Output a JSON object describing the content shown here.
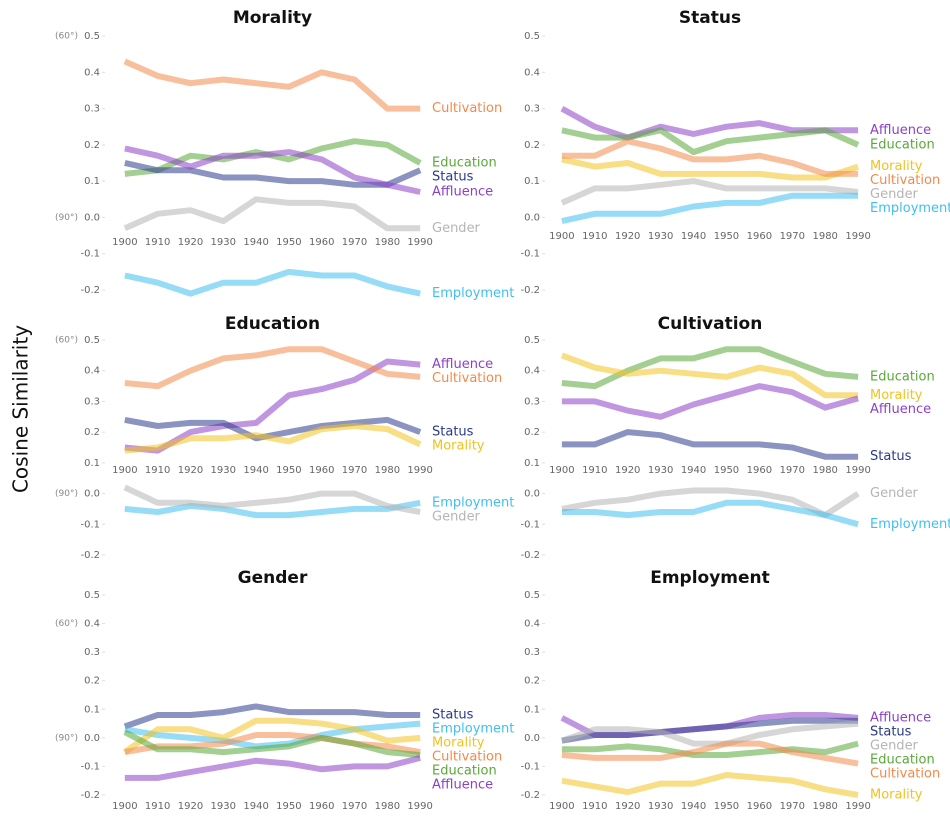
{
  "y_axis_label": "Cosine Similarity",
  "chart_data": [
    {
      "type": "line",
      "title": "Morality",
      "x": [
        1900,
        1910,
        1920,
        1930,
        1940,
        1950,
        1960,
        1970,
        1980,
        1990
      ],
      "xlim": [
        1897,
        1993
      ],
      "xticks": [
        1900,
        1910,
        1920,
        1930,
        1940,
        1950,
        1960,
        1970,
        1980,
        1990
      ],
      "ylim": [
        -0.2,
        0.5
      ],
      "yticks": [
        0.5,
        0.4,
        0.3,
        0.2,
        0.1,
        {
          "value": 0,
          "label": "0.0"
        },
        -0.1,
        -0.2
      ],
      "annotations": [
        {
          "text": "(60°)",
          "y": 0.5
        },
        {
          "text": "(90°)",
          "y": 0
        }
      ],
      "series": [
        {
          "name": "Cultivation",
          "color": "#f28a4a",
          "values": [
            0.43,
            0.39,
            0.37,
            0.38,
            0.37,
            0.36,
            0.4,
            0.38,
            0.3,
            0.3
          ]
        },
        {
          "name": "Education",
          "color": "#5aa83a",
          "values": [
            0.12,
            0.13,
            0.17,
            0.16,
            0.18,
            0.16,
            0.19,
            0.21,
            0.2,
            0.15
          ]
        },
        {
          "name": "Status",
          "color": "#2b3a8c",
          "values": [
            0.15,
            0.13,
            0.13,
            0.11,
            0.11,
            0.1,
            0.1,
            0.09,
            0.09,
            0.13
          ]
        },
        {
          "name": "Affluence",
          "color": "#8c3fc8",
          "values": [
            0.19,
            0.17,
            0.14,
            0.17,
            0.17,
            0.18,
            0.16,
            0.11,
            0.09,
            0.07
          ]
        },
        {
          "name": "Gender",
          "color": "#b5b5b5",
          "values": [
            -0.03,
            0.01,
            0.02,
            -0.01,
            0.05,
            0.04,
            0.04,
            0.03,
            -0.03,
            -0.03
          ]
        },
        {
          "name": "Employment",
          "color": "#3fbff0",
          "values": [
            -0.16,
            -0.18,
            -0.21,
            -0.18,
            -0.18,
            -0.15,
            -0.16,
            -0.16,
            -0.19,
            -0.21
          ]
        }
      ]
    },
    {
      "type": "line",
      "title": "Status",
      "x": [
        1900,
        1910,
        1920,
        1930,
        1940,
        1950,
        1960,
        1970,
        1980,
        1990
      ],
      "xlim": [
        1897,
        1993
      ],
      "xticks": [
        1900,
        1910,
        1920,
        1930,
        1940,
        1950,
        1960,
        1970,
        1980,
        1990
      ],
      "ylim": [
        -0.2,
        0.5
      ],
      "yticks": [
        0.5,
        0.4,
        0.3,
        0.2,
        0.1,
        {
          "value": 0,
          "label": "0.0"
        },
        -0.1,
        -0.2
      ],
      "series": [
        {
          "name": "Affluence",
          "color": "#8c3fc8",
          "values": [
            0.3,
            0.25,
            0.22,
            0.25,
            0.23,
            0.25,
            0.26,
            0.24,
            0.24,
            0.24
          ]
        },
        {
          "name": "Education",
          "color": "#5aa83a",
          "values": [
            0.24,
            0.22,
            0.22,
            0.24,
            0.18,
            0.21,
            0.22,
            0.23,
            0.24,
            0.2
          ]
        },
        {
          "name": "Morality",
          "color": "#f2c21f",
          "values": [
            0.16,
            0.14,
            0.15,
            0.12,
            0.12,
            0.12,
            0.12,
            0.11,
            0.11,
            0.14
          ]
        },
        {
          "name": "Cultivation",
          "color": "#f28a4a",
          "values": [
            0.17,
            0.17,
            0.21,
            0.19,
            0.16,
            0.16,
            0.17,
            0.15,
            0.12,
            0.12
          ]
        },
        {
          "name": "Gender",
          "color": "#b5b5b5",
          "values": [
            0.04,
            0.08,
            0.08,
            0.09,
            0.1,
            0.08,
            0.08,
            0.08,
            0.08,
            0.07
          ]
        },
        {
          "name": "Employment",
          "color": "#3fbff0",
          "values": [
            -0.01,
            0.01,
            0.01,
            0.01,
            0.03,
            0.04,
            0.04,
            0.06,
            0.06,
            0.06
          ]
        }
      ]
    },
    {
      "type": "line",
      "title": "Education",
      "x": [
        1900,
        1910,
        1920,
        1930,
        1940,
        1950,
        1960,
        1970,
        1980,
        1990
      ],
      "xlim": [
        1897,
        1993
      ],
      "xticks": [
        1900,
        1910,
        1920,
        1930,
        1940,
        1950,
        1960,
        1970,
        1980,
        1990
      ],
      "ylim": [
        -0.2,
        0.5
      ],
      "yticks": [
        0.5,
        0.4,
        0.3,
        0.2,
        0.1,
        {
          "value": 0,
          "label": "0.0"
        },
        -0.1,
        -0.2
      ],
      "annotations": [
        {
          "text": "(60°)",
          "y": 0.5
        },
        {
          "text": "(90°)",
          "y": 0
        }
      ],
      "series": [
        {
          "name": "Affluence",
          "color": "#8c3fc8",
          "values": [
            0.15,
            0.14,
            0.2,
            0.22,
            0.23,
            0.32,
            0.34,
            0.37,
            0.43,
            0.42
          ]
        },
        {
          "name": "Cultivation",
          "color": "#f28a4a",
          "values": [
            0.36,
            0.35,
            0.4,
            0.44,
            0.45,
            0.47,
            0.47,
            0.43,
            0.39,
            0.38
          ]
        },
        {
          "name": "Status",
          "color": "#2b3a8c",
          "values": [
            0.24,
            0.22,
            0.23,
            0.23,
            0.18,
            0.2,
            0.22,
            0.23,
            0.24,
            0.2
          ]
        },
        {
          "name": "Morality",
          "color": "#f2c21f",
          "values": [
            0.14,
            0.15,
            0.18,
            0.18,
            0.19,
            0.17,
            0.21,
            0.22,
            0.21,
            0.16
          ]
        },
        {
          "name": "Employment",
          "color": "#3fbff0",
          "values": [
            -0.05,
            -0.06,
            -0.04,
            -0.05,
            -0.07,
            -0.07,
            -0.06,
            -0.05,
            -0.05,
            -0.03
          ]
        },
        {
          "name": "Gender",
          "color": "#b5b5b5",
          "values": [
            0.02,
            -0.03,
            -0.03,
            -0.04,
            -0.03,
            -0.02,
            0.0,
            0.0,
            -0.04,
            -0.06
          ]
        }
      ]
    },
    {
      "type": "line",
      "title": "Cultivation",
      "x": [
        1900,
        1910,
        1920,
        1930,
        1940,
        1950,
        1960,
        1970,
        1980,
        1990
      ],
      "xlim": [
        1897,
        1993
      ],
      "xticks": [
        1900,
        1910,
        1920,
        1930,
        1940,
        1950,
        1960,
        1970,
        1980,
        1990
      ],
      "ylim": [
        -0.2,
        0.5
      ],
      "yticks": [
        0.5,
        0.4,
        0.3,
        0.2,
        0.1,
        {
          "value": 0,
          "label": "0.0"
        },
        -0.1,
        -0.2
      ],
      "series": [
        {
          "name": "Education",
          "color": "#5aa83a",
          "values": [
            0.36,
            0.35,
            0.4,
            0.44,
            0.44,
            0.47,
            0.47,
            0.43,
            0.39,
            0.38
          ]
        },
        {
          "name": "Morality",
          "color": "#f2c21f",
          "values": [
            0.45,
            0.41,
            0.39,
            0.4,
            0.39,
            0.38,
            0.41,
            0.39,
            0.32,
            0.32
          ]
        },
        {
          "name": "Affluence",
          "color": "#8c3fc8",
          "values": [
            0.3,
            0.3,
            0.27,
            0.25,
            0.29,
            0.32,
            0.35,
            0.33,
            0.28,
            0.31
          ]
        },
        {
          "name": "Status",
          "color": "#2b3a8c",
          "values": [
            0.16,
            0.16,
            0.2,
            0.19,
            0.16,
            0.16,
            0.16,
            0.15,
            0.12,
            0.12
          ]
        },
        {
          "name": "Gender",
          "color": "#b5b5b5",
          "values": [
            -0.05,
            -0.03,
            -0.02,
            0.0,
            0.01,
            0.01,
            0.0,
            -0.02,
            -0.07,
            0.0
          ]
        },
        {
          "name": "Employment",
          "color": "#3fbff0",
          "values": [
            -0.06,
            -0.06,
            -0.07,
            -0.06,
            -0.06,
            -0.03,
            -0.03,
            -0.05,
            -0.07,
            -0.1
          ]
        }
      ]
    },
    {
      "type": "line",
      "title": "Gender",
      "x": [
        1900,
        1910,
        1920,
        1930,
        1940,
        1950,
        1960,
        1970,
        1980,
        1990
      ],
      "xlim": [
        1897,
        1993
      ],
      "xticks": [
        1900,
        1910,
        1920,
        1930,
        1940,
        1950,
        1960,
        1970,
        1980,
        1990
      ],
      "ylim": [
        -0.2,
        0.5
      ],
      "yticks": [
        0.5,
        0.4,
        0.3,
        0.2,
        0.1,
        {
          "value": 0,
          "label": "0.0"
        },
        -0.1,
        -0.2
      ],
      "annotations": [
        {
          "text": "(60°)",
          "y": 0.4
        },
        {
          "text": "(90°)",
          "y": 0
        }
      ],
      "series": [
        {
          "name": "Status",
          "color": "#2b3a8c",
          "values": [
            0.04,
            0.08,
            0.08,
            0.09,
            0.11,
            0.09,
            0.09,
            0.09,
            0.08,
            0.08
          ]
        },
        {
          "name": "Employment",
          "color": "#3fbff0",
          "values": [
            0.03,
            0.01,
            0.0,
            -0.01,
            -0.03,
            -0.02,
            0.01,
            0.03,
            0.04,
            0.05
          ]
        },
        {
          "name": "Morality",
          "color": "#f2c21f",
          "values": [
            -0.05,
            0.03,
            0.03,
            0.0,
            0.06,
            0.06,
            0.05,
            0.03,
            -0.01,
            0.0
          ]
        },
        {
          "name": "Cultivation",
          "color": "#f28a4a",
          "values": [
            -0.05,
            -0.03,
            -0.03,
            -0.02,
            0.01,
            0.01,
            0.0,
            -0.02,
            -0.03,
            -0.05
          ]
        },
        {
          "name": "Education",
          "color": "#5aa83a",
          "values": [
            0.02,
            -0.04,
            -0.04,
            -0.05,
            -0.04,
            -0.03,
            0.0,
            -0.02,
            -0.05,
            -0.06
          ]
        },
        {
          "name": "Affluence",
          "color": "#8c3fc8",
          "values": [
            -0.14,
            -0.14,
            -0.12,
            -0.1,
            -0.08,
            -0.09,
            -0.11,
            -0.1,
            -0.1,
            -0.07
          ]
        }
      ]
    },
    {
      "type": "line",
      "title": "Employment",
      "x": [
        1900,
        1910,
        1920,
        1930,
        1940,
        1950,
        1960,
        1970,
        1980,
        1990
      ],
      "xlim": [
        1897,
        1993
      ],
      "xticks": [
        1900,
        1910,
        1920,
        1930,
        1940,
        1950,
        1960,
        1970,
        1980,
        1990
      ],
      "ylim": [
        -0.2,
        0.5
      ],
      "yticks": [
        0.5,
        0.4,
        0.3,
        0.2,
        0.1,
        {
          "value": 0,
          "label": "0.0"
        },
        -0.1,
        -0.2
      ],
      "series": [
        {
          "name": "Affluence",
          "color": "#8c3fc8",
          "values": [
            0.07,
            0.01,
            0.01,
            0.02,
            0.03,
            0.04,
            0.07,
            0.08,
            0.08,
            0.07
          ]
        },
        {
          "name": "Status",
          "color": "#2b3a8c",
          "values": [
            -0.01,
            0.01,
            0.01,
            0.02,
            0.03,
            0.04,
            0.05,
            0.06,
            0.06,
            0.06
          ]
        },
        {
          "name": "Gender",
          "color": "#b5b5b5",
          "values": [
            -0.01,
            0.03,
            0.03,
            0.02,
            -0.02,
            -0.02,
            0.01,
            0.03,
            0.04,
            0.05
          ]
        },
        {
          "name": "Education",
          "color": "#5aa83a",
          "values": [
            -0.04,
            -0.04,
            -0.03,
            -0.04,
            -0.06,
            -0.06,
            -0.05,
            -0.04,
            -0.05,
            -0.02
          ]
        },
        {
          "name": "Cultivation",
          "color": "#f28a4a",
          "values": [
            -0.06,
            -0.07,
            -0.07,
            -0.07,
            -0.05,
            -0.02,
            -0.02,
            -0.05,
            -0.07,
            -0.09
          ]
        },
        {
          "name": "Morality",
          "color": "#f2c21f",
          "values": [
            -0.15,
            -0.17,
            -0.19,
            -0.16,
            -0.16,
            -0.13,
            -0.14,
            -0.15,
            -0.18,
            -0.2
          ]
        }
      ]
    }
  ]
}
